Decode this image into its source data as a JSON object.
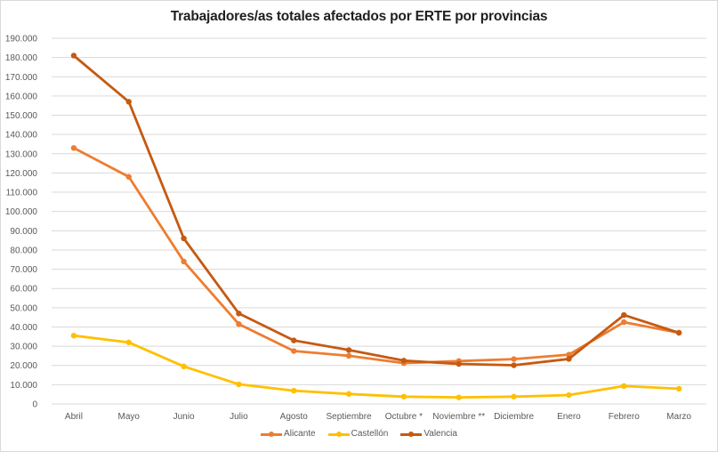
{
  "chart_data": {
    "type": "line",
    "title": "Trabajadores/as totales afectados por ERTE por provincias",
    "xlabel": "",
    "ylabel": "",
    "categories": [
      "Abril",
      "Mayo",
      "Junio",
      "Julio",
      "Agosto",
      "Septiembre",
      "Octubre *",
      "Noviembre **",
      "Diciembre",
      "Enero",
      "Febrero",
      "Marzo"
    ],
    "ylim": [
      0,
      190000
    ],
    "yticks": [
      0,
      10000,
      20000,
      30000,
      40000,
      50000,
      60000,
      70000,
      80000,
      90000,
      100000,
      110000,
      120000,
      130000,
      140000,
      150000,
      160000,
      170000,
      180000,
      190000
    ],
    "ytick_labels": [
      "0",
      "10.000",
      "20.000",
      "30.000",
      "40.000",
      "50.000",
      "60.000",
      "70.000",
      "80.000",
      "90.000",
      "100.000",
      "110.000",
      "120.000",
      "130.000",
      "140.000",
      "150.000",
      "160.000",
      "170.000",
      "180.000",
      "190.000"
    ],
    "grid": true,
    "legend_position": "bottom",
    "series": [
      {
        "name": "Alicante",
        "color": "#ED7D31",
        "values": [
          133000,
          118000,
          74000,
          41500,
          27500,
          25000,
          21200,
          22300,
          23300,
          25600,
          42500,
          37000
        ]
      },
      {
        "name": "Castellón",
        "color": "#FFC000",
        "values": [
          35500,
          32000,
          19500,
          10200,
          6900,
          5200,
          3800,
          3400,
          3800,
          4600,
          9300,
          7900
        ]
      },
      {
        "name": "Valencia",
        "color": "#C55A11",
        "values": [
          181000,
          157000,
          86000,
          47000,
          33000,
          28000,
          22500,
          20800,
          20100,
          23400,
          46200,
          37000
        ]
      }
    ]
  }
}
